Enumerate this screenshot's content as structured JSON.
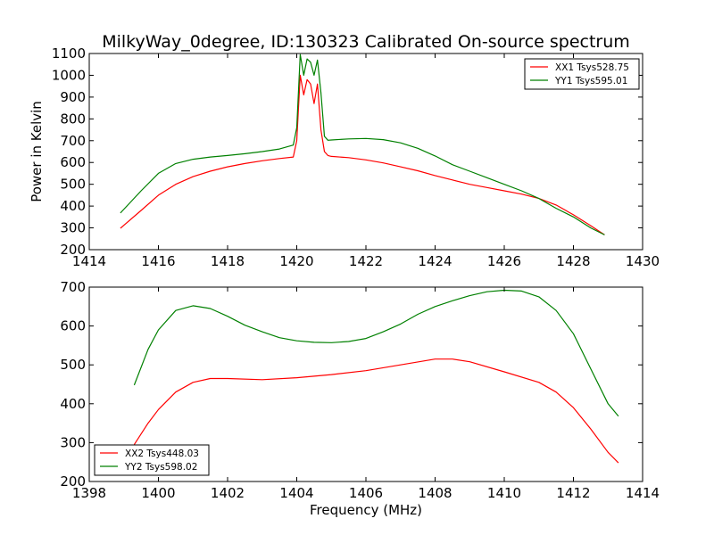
{
  "figure": {
    "title": "MilkyWay_0degree, ID:130323 Calibrated On-source spectrum",
    "xlabel": "Frequency (MHz)"
  },
  "chart_data": [
    {
      "type": "line",
      "title": "",
      "xlabel": "",
      "ylabel": "Power in Kelvin",
      "xlim": [
        1414,
        1430
      ],
      "ylim": [
        200,
        1100
      ],
      "xticks": [
        "1414",
        "1416",
        "1418",
        "1420",
        "1422",
        "1424",
        "1426",
        "1428",
        "1430"
      ],
      "yticks": [
        "200",
        "300",
        "400",
        "500",
        "600",
        "700",
        "800",
        "900",
        "1000",
        "1100"
      ],
      "grid": false,
      "legend_position": "top-right",
      "series": [
        {
          "name": "XX1 Tsys528.75",
          "color": "#ff0000",
          "x": [
            1414.9,
            1415.5,
            1416.0,
            1416.5,
            1417.0,
            1417.5,
            1418.0,
            1418.5,
            1419.0,
            1419.5,
            1419.9,
            1420.0,
            1420.1,
            1420.2,
            1420.3,
            1420.4,
            1420.5,
            1420.6,
            1420.7,
            1420.8,
            1420.9,
            1421.0,
            1421.5,
            1422.0,
            1422.5,
            1423.0,
            1423.5,
            1424.0,
            1424.5,
            1425.0,
            1425.5,
            1426.0,
            1426.5,
            1427.0,
            1427.5,
            1428.0,
            1428.5,
            1428.9
          ],
          "y": [
            298,
            380,
            450,
            500,
            535,
            560,
            580,
            595,
            608,
            618,
            625,
            700,
            1000,
            910,
            980,
            960,
            870,
            960,
            750,
            650,
            632,
            628,
            622,
            612,
            598,
            580,
            562,
            540,
            520,
            500,
            485,
            470,
            455,
            435,
            405,
            360,
            310,
            268
          ]
        },
        {
          "name": "YY1 Tsys595.01",
          "color": "#008000",
          "x": [
            1414.9,
            1415.5,
            1416.0,
            1416.5,
            1417.0,
            1417.5,
            1418.0,
            1418.5,
            1419.0,
            1419.5,
            1419.9,
            1420.0,
            1420.1,
            1420.2,
            1420.3,
            1420.4,
            1420.5,
            1420.6,
            1420.7,
            1420.8,
            1420.9,
            1421.0,
            1421.5,
            1422.0,
            1422.5,
            1423.0,
            1423.5,
            1424.0,
            1424.5,
            1425.0,
            1425.5,
            1426.0,
            1426.5,
            1427.0,
            1427.5,
            1428.0,
            1428.5,
            1428.9
          ],
          "y": [
            368,
            470,
            550,
            595,
            615,
            625,
            632,
            640,
            650,
            662,
            680,
            760,
            1095,
            1000,
            1075,
            1060,
            1000,
            1070,
            920,
            720,
            702,
            703,
            708,
            710,
            705,
            690,
            665,
            630,
            590,
            560,
            530,
            500,
            470,
            435,
            390,
            350,
            300,
            268
          ]
        }
      ]
    },
    {
      "type": "line",
      "title": "",
      "xlabel": "Frequency (MHz)",
      "ylabel": "",
      "xlim": [
        1398,
        1414
      ],
      "ylim": [
        200,
        700
      ],
      "xticks": [
        "1398",
        "1400",
        "1402",
        "1404",
        "1406",
        "1408",
        "1410",
        "1412",
        "1414"
      ],
      "yticks": [
        "200",
        "300",
        "400",
        "500",
        "600",
        "700"
      ],
      "grid": false,
      "legend_position": "bottom-left",
      "series": [
        {
          "name": "XX2 Tsys448.03",
          "color": "#ff0000",
          "x": [
            1399.3,
            1399.7,
            1400.0,
            1400.5,
            1401.0,
            1401.5,
            1402.0,
            1403.0,
            1404.0,
            1405.0,
            1406.0,
            1407.0,
            1408.0,
            1408.5,
            1409.0,
            1410.0,
            1411.0,
            1411.5,
            1412.0,
            1412.5,
            1413.0,
            1413.3
          ],
          "y": [
            295,
            350,
            385,
            430,
            455,
            465,
            465,
            462,
            467,
            475,
            485,
            500,
            515,
            515,
            508,
            482,
            455,
            430,
            390,
            335,
            275,
            248
          ]
        },
        {
          "name": "YY2 Tsys598.02",
          "color": "#008000",
          "x": [
            1399.3,
            1399.7,
            1400.0,
            1400.5,
            1401.0,
            1401.5,
            1402.0,
            1402.5,
            1403.0,
            1403.5,
            1404.0,
            1404.5,
            1405.0,
            1405.5,
            1406.0,
            1406.5,
            1407.0,
            1407.5,
            1408.0,
            1408.5,
            1409.0,
            1409.5,
            1410.0,
            1410.5,
            1411.0,
            1411.5,
            1412.0,
            1412.5,
            1413.0,
            1413.3
          ],
          "y": [
            448,
            540,
            590,
            640,
            652,
            645,
            625,
            602,
            585,
            570,
            562,
            558,
            557,
            560,
            568,
            585,
            605,
            630,
            650,
            665,
            678,
            688,
            692,
            690,
            675,
            640,
            580,
            490,
            400,
            368
          ]
        }
      ]
    }
  ]
}
